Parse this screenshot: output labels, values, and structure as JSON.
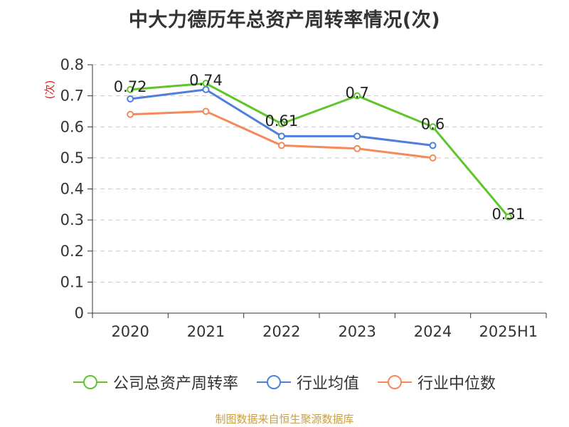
{
  "page": {
    "title": "中大力德历年总资产周转率情况(次)",
    "source": "制图数据来自恒生聚源数据库"
  },
  "chart_data": {
    "type": "line",
    "title": "中大力德历年总资产周转率情况(次)",
    "ylabel": "(次)",
    "xlabel": "",
    "categories": [
      "2020",
      "2021",
      "2022",
      "2023",
      "2024",
      "2025H1"
    ],
    "ylim": [
      0,
      0.8
    ],
    "yticks": [
      "0",
      "0.1",
      "0.2",
      "0.3",
      "0.4",
      "0.5",
      "0.6",
      "0.7",
      "0.8"
    ],
    "grid": true,
    "legend_position": "bottom",
    "series": [
      {
        "name": "公司总资产周转率",
        "color": "#5ec52a",
        "values": [
          0.72,
          0.74,
          0.61,
          0.7,
          0.6,
          0.31
        ],
        "labels": [
          "0.72",
          "0.74",
          "0.61",
          "0.7",
          "0.6",
          "0.31"
        ]
      },
      {
        "name": "行业均值",
        "color": "#4e7fdc",
        "values": [
          0.69,
          0.72,
          0.57,
          0.57,
          0.54,
          null
        ]
      },
      {
        "name": "行业中位数",
        "color": "#f5895a",
        "values": [
          0.64,
          0.65,
          0.54,
          0.53,
          0.5,
          null
        ]
      }
    ]
  }
}
